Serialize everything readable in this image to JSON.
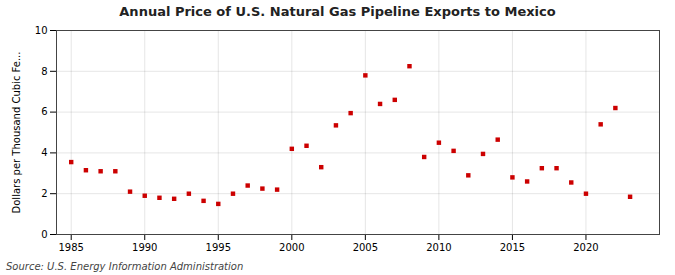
{
  "chart_data": {
    "type": "scatter",
    "title": "Annual Price of U.S. Natural Gas Pipeline Exports to Mexico",
    "ylabel": "Dollars per Thousand Cubic Fe...",
    "source": "Source: U.S. Energy Information Administration",
    "x": [
      1985,
      1986,
      1987,
      1988,
      1989,
      1990,
      1991,
      1992,
      1993,
      1994,
      1995,
      1996,
      1997,
      1998,
      1999,
      2000,
      2001,
      2002,
      2003,
      2004,
      2005,
      2006,
      2007,
      2008,
      2009,
      2010,
      2011,
      2012,
      2013,
      2014,
      2015,
      2016,
      2017,
      2018,
      2019,
      2020,
      2021,
      2022,
      2023
    ],
    "values": [
      3.55,
      3.15,
      3.1,
      3.1,
      2.1,
      1.9,
      1.8,
      1.75,
      2.0,
      1.65,
      1.5,
      2.0,
      2.4,
      2.25,
      2.2,
      4.2,
      4.35,
      3.3,
      5.35,
      5.95,
      7.8,
      6.4,
      6.6,
      8.25,
      3.8,
      4.5,
      4.1,
      2.9,
      3.95,
      4.65,
      2.8,
      2.6,
      3.25,
      3.25,
      2.55,
      2.0,
      5.4,
      6.2,
      1.85
    ],
    "color": "#cc0000",
    "marker": "square",
    "xlim": [
      1984,
      2025
    ],
    "ylim": [
      0,
      10
    ],
    "xticks": [
      1985,
      1990,
      1995,
      2000,
      2005,
      2010,
      2015,
      2020
    ],
    "yticks": [
      0,
      2,
      4,
      6,
      8,
      10
    ],
    "grid": true
  }
}
